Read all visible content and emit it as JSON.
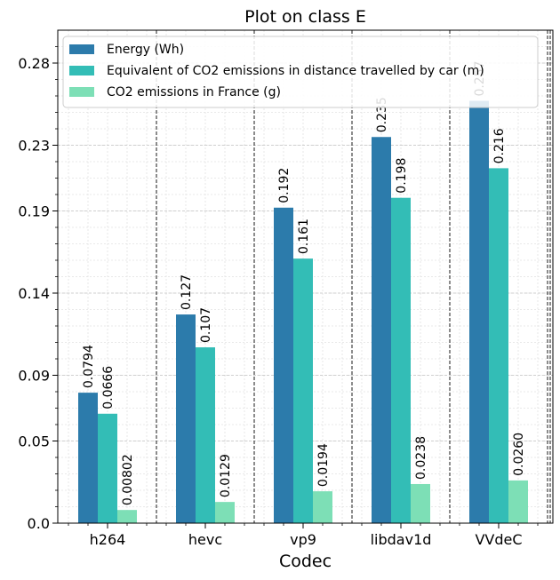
{
  "chart_data": {
    "type": "bar",
    "title": "Plot on class E",
    "xlabel": "Codec",
    "ylabel": "",
    "categories": [
      "h264",
      "hevc",
      "vp9",
      "libdav1d",
      "VVdeC"
    ],
    "series": [
      {
        "name": "Energy (Wh)",
        "color": "#2c7bab",
        "values": [
          0.0794,
          0.127,
          0.192,
          0.235,
          0.257
        ],
        "labels": [
          "0.0794",
          "0.127",
          "0.192",
          "0.235",
          "0.257"
        ]
      },
      {
        "name": "Equivalent of CO2 emissions in distance travelled by car (m)",
        "color": "#33bdb6",
        "values": [
          0.0666,
          0.107,
          0.161,
          0.198,
          0.216
        ],
        "labels": [
          "0.0666",
          "0.107",
          "0.161",
          "0.198",
          "0.216"
        ]
      },
      {
        "name": "CO2 emissions in France (g)",
        "color": "#7ddfb6",
        "values": [
          0.00802,
          0.0129,
          0.0194,
          0.0238,
          0.026
        ],
        "labels": [
          "0.00802",
          "0.0129",
          "0.0194",
          "0.0238",
          "0.0260"
        ]
      }
    ],
    "y_ticks": [
      0.0,
      0.05,
      0.09,
      0.14,
      0.19,
      0.23,
      0.28
    ],
    "y_tick_labels": [
      "0.0",
      "0.05",
      "0.09",
      "0.14",
      "0.19",
      "0.23",
      "0.28"
    ],
    "ylim": [
      0,
      0.3
    ],
    "grid": true,
    "legend_position": "top-left"
  }
}
